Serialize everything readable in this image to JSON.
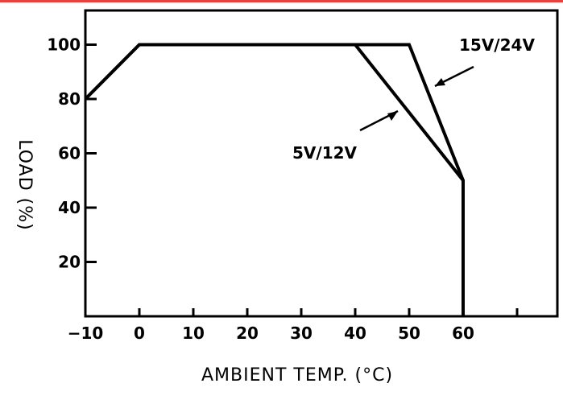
{
  "colors": {
    "top_rule": "#e8413c",
    "ink": "#000000",
    "background": "#ffffff"
  },
  "chart_data": {
    "type": "line",
    "title": "",
    "xlabel": "AMBIENT TEMP. (°C)",
    "ylabel": "LOAD (%)",
    "xlim": [
      -10,
      70
    ],
    "ylim": [
      0,
      110
    ],
    "x_ticks": [
      -10,
      0,
      10,
      20,
      30,
      40,
      50,
      60
    ],
    "x_tick_labels": [
      "−10",
      "0",
      "10",
      "20",
      "30",
      "40",
      "50",
      "60"
    ],
    "y_ticks": [
      20,
      40,
      60,
      80,
      100
    ],
    "y_tick_labels": [
      "20",
      "40",
      "60",
      "80",
      "100"
    ],
    "grid": false,
    "series": [
      {
        "name": "5V/12V",
        "x": [
          -10,
          0,
          40,
          60,
          60
        ],
        "y": [
          80,
          100,
          100,
          50,
          0
        ]
      },
      {
        "name": "15V/24V",
        "x": [
          -10,
          0,
          50,
          60,
          60
        ],
        "y": [
          80,
          100,
          100,
          50,
          0
        ]
      }
    ]
  }
}
